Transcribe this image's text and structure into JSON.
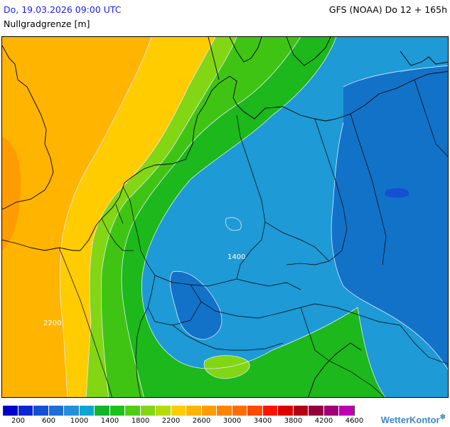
{
  "header": {
    "date": "Do, 19.03.2026 09:00 UTC",
    "parameter": "Nullgradgrenze [m]",
    "model": "GFS (NOAA) Do 12 + 165h"
  },
  "map": {
    "contour_labels": [
      "1400",
      "2200"
    ]
  },
  "legend": {
    "colors": [
      "#0000c8",
      "#0a28d0",
      "#1450d2",
      "#1e6ed6",
      "#2490da",
      "#0ea5d0",
      "#12b42a",
      "#1cc21c",
      "#50cc14",
      "#82d614",
      "#b4dc0a",
      "#ffcc00",
      "#ffb400",
      "#ff9c00",
      "#ff8400",
      "#ff6c00",
      "#ff4a00",
      "#ff1400",
      "#dc0000",
      "#b40014",
      "#96003c",
      "#a00078",
      "#be00b4"
    ],
    "tick_labels": [
      "200",
      "600",
      "1000",
      "1400",
      "1800",
      "2200",
      "2600",
      "3000",
      "3400",
      "3800",
      "4200",
      "4600"
    ]
  },
  "brand": {
    "name": "WetterKontor",
    "icon": "snowflake-icon"
  }
}
